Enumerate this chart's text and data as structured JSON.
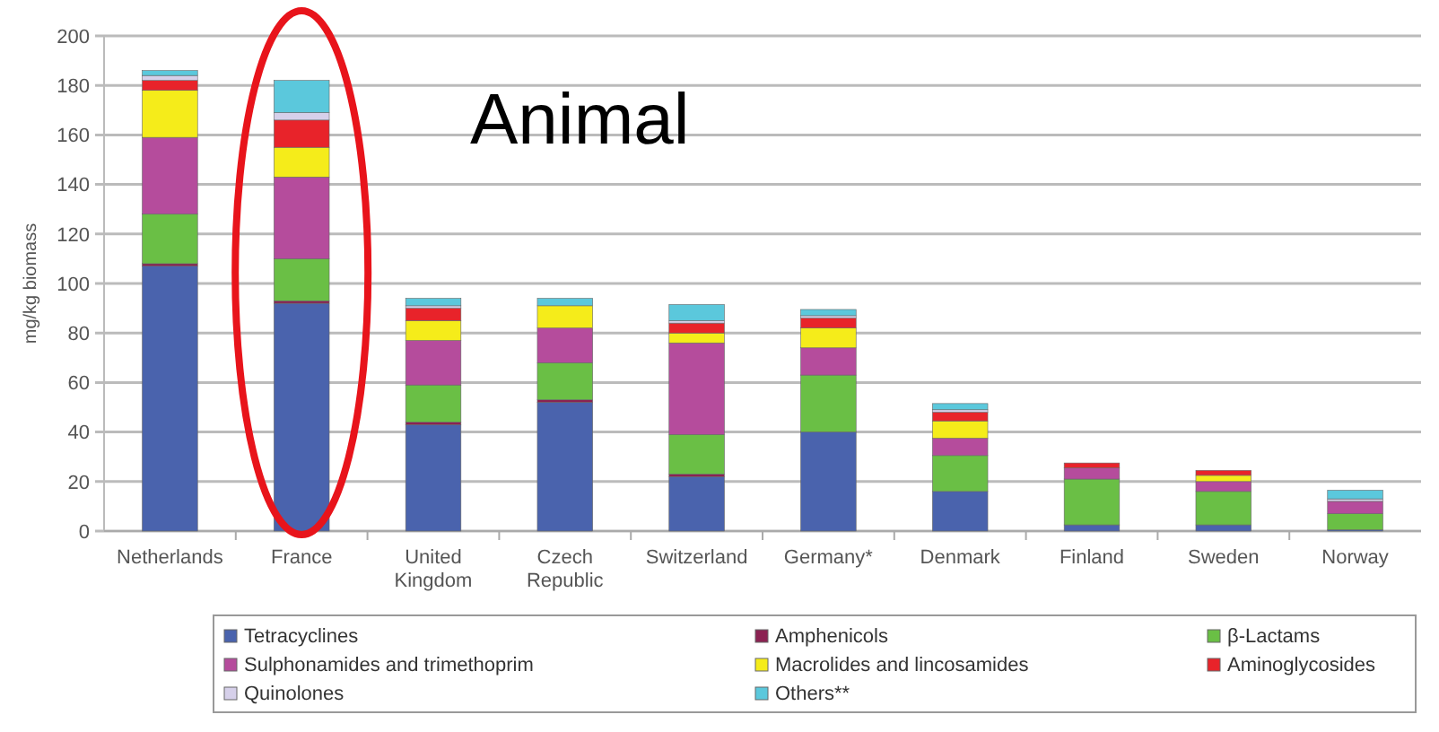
{
  "chart_data": {
    "type": "bar",
    "title": "Animal",
    "ylabel": "mg/kg biomass",
    "stacked": true,
    "grid": "y",
    "legend": "bottom",
    "categories": [
      "Netherlands",
      "France",
      "United Kingdom",
      "Czech Republic",
      "Switzerland",
      "Germany*",
      "Denmark",
      "Finland",
      "Sweden",
      "Norway"
    ],
    "ylim": [
      0,
      200
    ],
    "yticks": [
      0,
      20,
      40,
      60,
      80,
      100,
      120,
      140,
      160,
      180,
      200
    ],
    "series": [
      {
        "name": "Tetracyclines",
        "color": "#4a63ad",
        "values": [
          107,
          92,
          43,
          52,
          22,
          40,
          16,
          2.5,
          2.5,
          0.5
        ]
      },
      {
        "name": "Amphenicols",
        "color": "#8b2252",
        "values": [
          1,
          1,
          1,
          1,
          1,
          0,
          0,
          0,
          0,
          0
        ]
      },
      {
        "name": "β-Lactams",
        "color": "#6abf45",
        "values": [
          20,
          17,
          15,
          15,
          16,
          23,
          14.5,
          18.5,
          13.5,
          6.5
        ]
      },
      {
        "name": "Sulphonamides and trimethoprim",
        "color": "#b54c9c",
        "values": [
          31,
          33,
          18,
          14,
          37,
          11,
          7,
          4.5,
          4,
          5
        ]
      },
      {
        "name": "Macrolides and lincosamides",
        "color": "#f5ec1a",
        "values": [
          19,
          12,
          8,
          9,
          4,
          8,
          7,
          0,
          2.5,
          0
        ]
      },
      {
        "name": "Aminoglycosides",
        "color": "#e8232a",
        "values": [
          4,
          11,
          5,
          0,
          4,
          4,
          3.5,
          2,
          2,
          0
        ]
      },
      {
        "name": "Quinolones",
        "color": "#d6d0ea",
        "values": [
          2,
          3,
          1,
          0,
          1,
          1,
          1,
          0,
          0,
          1
        ]
      },
      {
        "name": "Others**",
        "color": "#5bc8dc",
        "values": [
          2,
          13,
          3,
          3,
          6.5,
          2.5,
          2.5,
          0,
          0,
          3.5
        ]
      }
    ]
  }
}
